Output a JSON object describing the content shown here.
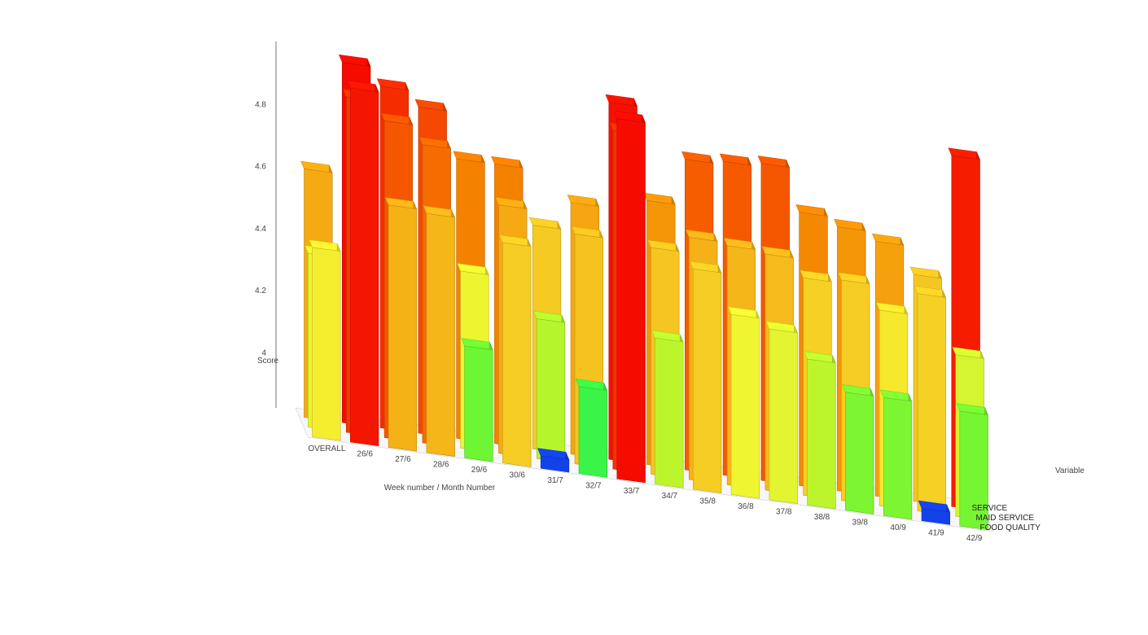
{
  "chart_data": {
    "type": "bar",
    "title": "",
    "xlabel": "Week number / Month Number",
    "ylabel": "Score",
    "zlabel": "Variable",
    "ylim": [
      3.82,
      5.0
    ],
    "yticks": [
      "4",
      "4.2",
      "4.4",
      "4.6",
      "4.8"
    ],
    "categories": [
      "OVERALL",
      "26/6",
      "27/6",
      "28/6",
      "29/6",
      "30/6",
      "31/7",
      "32/7",
      "33/7",
      "34/7",
      "35/8",
      "36/8",
      "37/8",
      "38/8",
      "39/8",
      "40/9",
      "41/9",
      "42/9"
    ],
    "series": [
      {
        "name": "FOOD QUALITY",
        "values": [
          4.43,
          4.96,
          4.6,
          4.59,
          4.18,
          4.53,
          3.86,
          4.1,
          4.98,
          4.29,
          4.53,
          4.4,
          4.37,
          4.29,
          4.2,
          4.2,
          3.86,
          4.19
        ]
      },
      {
        "name": "MAID SERVICE",
        "values": [
          4.38,
          4.9,
          4.84,
          4.78,
          4.39,
          4.62,
          4.27,
          4.56,
          4.91,
          4.55,
          4.6,
          4.59,
          4.58,
          4.52,
          4.53,
          4.45,
          4.52,
          4.34
        ]
      },
      {
        "name": "SERVICE",
        "values": [
          4.62,
          4.98,
          4.92,
          4.87,
          4.72,
          4.72,
          4.54,
          4.63,
          4.97,
          4.67,
          4.82,
          4.83,
          4.84,
          4.7,
          4.67,
          4.64,
          4.55,
          4.95
        ]
      }
    ],
    "colorscale": [
      "#0000ff",
      "#48ffd0",
      "#3bff3b",
      "#b8ff2e",
      "#ffff33",
      "#ffcc22",
      "#ff8c00",
      "#ff5500",
      "#ff0000"
    ],
    "grid": false,
    "legend": "none"
  }
}
